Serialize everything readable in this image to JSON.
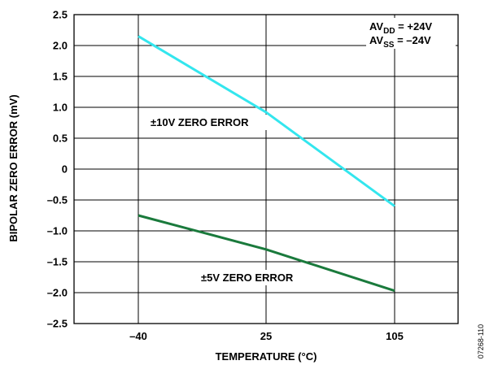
{
  "chart_data": {
    "type": "line",
    "xlabel": "TEMPERATURE (°C)",
    "ylabel": "BIPOLAR ZERO ERROR (mV)",
    "categories": [
      "–40",
      "25",
      "105"
    ],
    "yticks": [
      "2.5",
      "2.0",
      "1.5",
      "1.0",
      "0.5",
      "0",
      "–0.5",
      "–1.0",
      "–1.5",
      "–2.0",
      "–2.5"
    ],
    "ylim": [
      -2.5,
      2.5
    ],
    "grid": true,
    "series": [
      {
        "name": "±10V ZERO ERROR",
        "color": "#33e6ee",
        "x": [
          -40,
          25,
          105
        ],
        "values": [
          2.15,
          0.92,
          -0.6
        ]
      },
      {
        "name": "±5V ZERO ERROR",
        "color": "#1a7a3c",
        "x": [
          -40,
          25,
          105
        ],
        "values": [
          -0.75,
          -1.3,
          -1.97
        ]
      }
    ],
    "conditions": {
      "avdd": {
        "prefix": "AV",
        "sub": "DD",
        "value": " = +24V"
      },
      "avss": {
        "prefix": "AV",
        "sub": "SS",
        "value": " = –24V"
      }
    },
    "figure_id": "07268-110"
  }
}
